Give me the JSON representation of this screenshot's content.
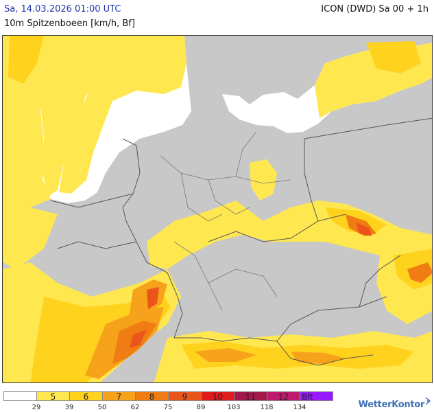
{
  "header": {
    "date_text": "Sa, 14.03.2026 01:00 UTC",
    "model_text": "ICON (DWD) Sa 00 + 1h",
    "parameter_text": "10m Spitzenboeen [km/h, Bf]"
  },
  "map": {
    "land_color": "#c8c8c8",
    "water_color": "#ffffff",
    "border_color": "#555555"
  },
  "legend": {
    "cells": [
      {
        "label": "",
        "color": "#ffffff"
      },
      {
        "label": "5",
        "color": "#ffe84f"
      },
      {
        "label": "6",
        "color": "#ffd21e"
      },
      {
        "label": "7",
        "color": "#f6a21a"
      },
      {
        "label": "8",
        "color": "#f07c14"
      },
      {
        "label": "9",
        "color": "#ea5619"
      },
      {
        "label": "10",
        "color": "#df1c1c"
      },
      {
        "label": "11",
        "color": "#a2184b"
      },
      {
        "label": "12",
        "color": "#be1a6b"
      },
      {
        "label": "Bft",
        "color": "#9919ff"
      }
    ],
    "ticks": [
      "29",
      "39",
      "50",
      "62",
      "75",
      "89",
      "103",
      "118",
      "134"
    ]
  },
  "brand": {
    "name": "WetterKontor"
  }
}
